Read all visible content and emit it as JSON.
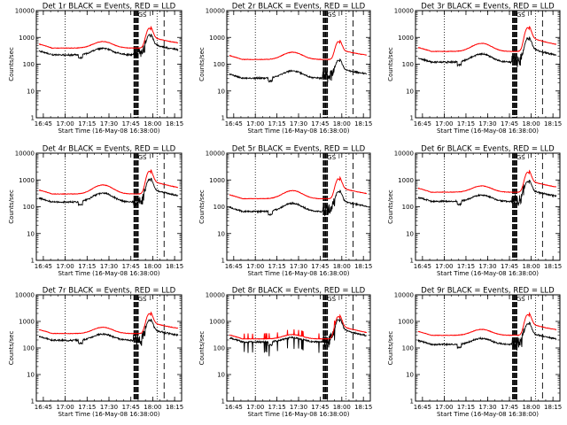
{
  "chart_data": {
    "type": "line",
    "layout": "3x3-grid",
    "series_names": [
      "Events",
      "LLD"
    ],
    "series_colors": {
      "Events": "#000000",
      "LLD": "#ff0000"
    },
    "x_tick_labels": [
      "16:45",
      "17:00",
      "17:15",
      "17:30",
      "17:45",
      "18:00",
      "18:15"
    ],
    "x_ticks": [
      16.75,
      17.0,
      17.25,
      17.5,
      17.75,
      18.0,
      18.25
    ],
    "xlim": [
      16.67,
      18.33
    ],
    "xlabel": "Start Time (16-May-08 16:38:00)",
    "ylabel": "Counts/sec",
    "y_scale": "log",
    "ylim": [
      1,
      10000
    ],
    "y_tick_labels": [
      "1",
      "10",
      "100",
      "1000",
      "10000"
    ],
    "y_ticks": [
      1,
      10,
      100,
      1000,
      10000
    ],
    "markers": {
      "dotted_x": [
        17.0,
        18.05
      ],
      "thick_dashed_x": [
        17.79,
        17.81,
        17.83
      ],
      "dashed_x": [
        18.13
      ],
      "annotation": {
        "label": "GS",
        "x": 17.88
      }
    },
    "panels": [
      {
        "title": "Det 1r BLACK = Events, RED = LLD",
        "base": 400,
        "bump": 700,
        "flare": 1800,
        "ratio": 1.8,
        "glitch": false
      },
      {
        "title": "Det 2r BLACK = Events, RED = LLD",
        "base": 150,
        "bump": 280,
        "flare": 550,
        "ratio": 5.0,
        "glitch": false
      },
      {
        "title": "Det 3r BLACK = Events, RED = LLD",
        "base": 300,
        "bump": 600,
        "flare": 2000,
        "ratio": 2.5,
        "glitch": false
      },
      {
        "title": "Det 4r BLACK = Events, RED = LLD",
        "base": 300,
        "bump": 650,
        "flare": 1800,
        "ratio": 2.0,
        "glitch": false
      },
      {
        "title": "Det 5r BLACK = Events, RED = LLD",
        "base": 200,
        "bump": 400,
        "flare": 900,
        "ratio": 3.0,
        "glitch": false
      },
      {
        "title": "Det 6r BLACK = Events, RED = LLD",
        "base": 350,
        "bump": 600,
        "flare": 1600,
        "ratio": 2.2,
        "glitch": false
      },
      {
        "title": "Det 7r BLACK = Events, RED = LLD",
        "base": 350,
        "bump": 600,
        "flare": 1600,
        "ratio": 1.8,
        "glitch": false
      },
      {
        "title": "Det 8r BLACK = Events, RED = LLD",
        "base": 220,
        "bump": 320,
        "flare": 1300,
        "ratio": 1.3,
        "glitch": true
      },
      {
        "title": "Det 9r BLACK = Events, RED = LLD",
        "base": 300,
        "bump": 500,
        "flare": 1500,
        "ratio": 2.2,
        "glitch": false
      }
    ]
  }
}
